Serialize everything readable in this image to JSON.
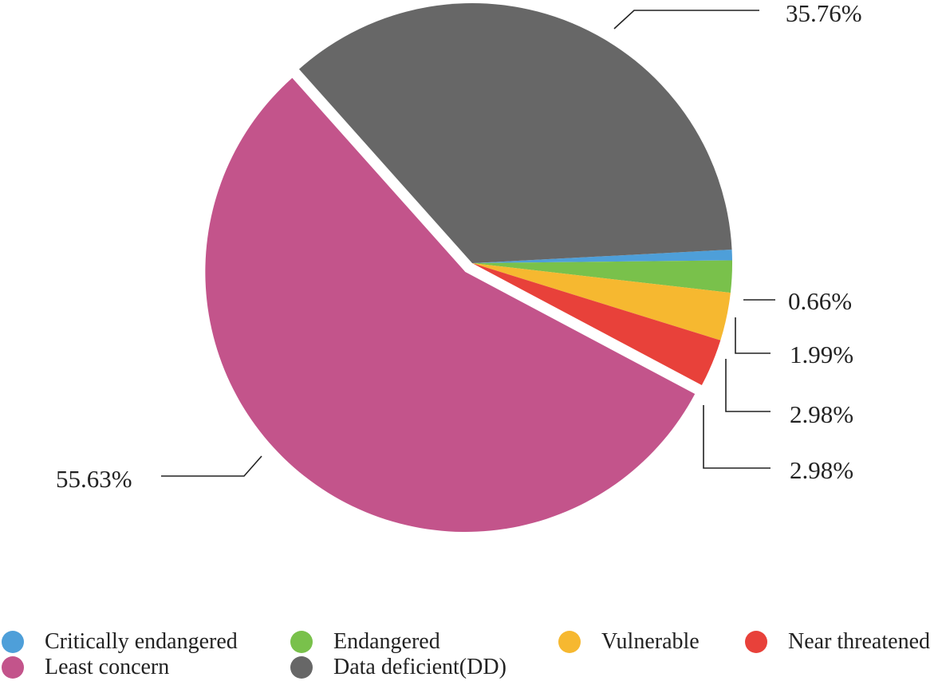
{
  "chart_data": {
    "type": "pie",
    "slices": [
      {
        "label": "Critically endangered",
        "value": 0.66,
        "value_label": "0.66%",
        "color": "#4e9fd9"
      },
      {
        "label": "Endangered",
        "value": 1.99,
        "value_label": "1.99%",
        "color": "#79c14b"
      },
      {
        "label": "Vulnerable",
        "value": 2.98,
        "value_label": "2.98%",
        "color": "#f6b830"
      },
      {
        "label": "Near threatened",
        "value": 2.98,
        "value_label": "2.98%",
        "color": "#e8413a"
      },
      {
        "label": "Least concern",
        "value": 55.63,
        "value_label": "55.63%",
        "color": "#c3548b",
        "exploded": true
      },
      {
        "label": "Data deficient(DD)",
        "value": 35.76,
        "value_label": "35.76%",
        "color": "#676767"
      }
    ],
    "legend_position": "bottom"
  }
}
